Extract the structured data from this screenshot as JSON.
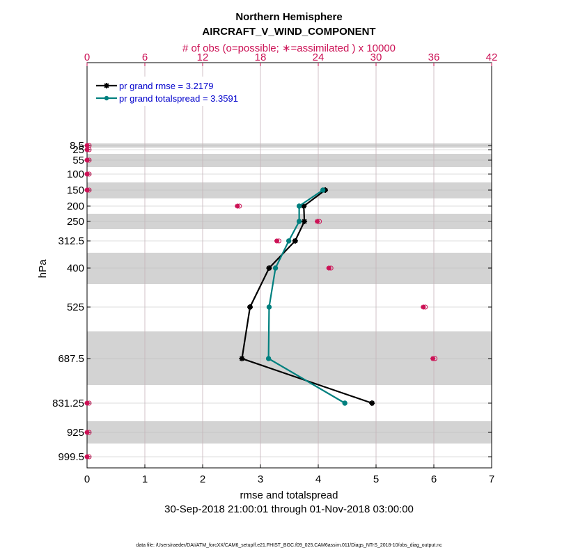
{
  "chart_data": {
    "type": "line",
    "title": "Northern Hemisphere",
    "subtitle": "AIRCRAFT_V_WIND_COMPONENT",
    "top_axis_label": "# of obs (o=possible; ∗=assimilated ) x 10000",
    "xlabel": "rmse and totalspread",
    "ylabel": "hPa",
    "date_range": "30-Sep-2018 21:00:01 through 01-Nov-2018 03:00:00",
    "footnote": "data file: /Users/raeder/DAI/ATM_forcXX/CAM6_setup/f.e21.FHIST_BGC.f09_025.CAM6assim.011/Diags_NTrS_2018-10/obs_diag_output.nc",
    "xlim": [
      0,
      7
    ],
    "x_ticks": [
      0,
      1,
      2,
      3,
      4,
      5,
      6,
      7
    ],
    "top_xlim": [
      0,
      42
    ],
    "top_ticks": [
      0,
      6,
      12,
      18,
      24,
      30,
      36,
      42
    ],
    "levels": [
      "8.5",
      "25",
      "55",
      "100",
      "150",
      "200",
      "250",
      "312.5",
      "400",
      "525",
      "687.5",
      "831.25",
      "925",
      "999.5"
    ],
    "shaded_bands": [
      [
        "8.5",
        "25"
      ],
      [
        "55",
        "100"
      ],
      [
        "150",
        "200"
      ],
      [
        "250",
        "312.5"
      ],
      [
        "400",
        "525"
      ],
      [
        "687.5",
        "831.25"
      ],
      [
        "925",
        "999.5"
      ]
    ],
    "legend_position": "top-left",
    "series": [
      {
        "name": "pr grand rmse = 3.2179",
        "color": "#000000",
        "marker": "star",
        "points": [
          [
            "150",
            4.12
          ],
          [
            "200",
            3.75
          ],
          [
            "250",
            3.76
          ],
          [
            "312.5",
            3.6
          ],
          [
            "400",
            3.15
          ],
          [
            "525",
            2.82
          ],
          [
            "687.5",
            2.68
          ],
          [
            "831.25",
            4.93
          ]
        ]
      },
      {
        "name": "pr grand totalspread = 3.3591",
        "color": "#00807f",
        "marker": "circle",
        "points": [
          [
            "150",
            4.08
          ],
          [
            "200",
            3.67
          ],
          [
            "250",
            3.67
          ],
          [
            "312.5",
            3.49
          ],
          [
            "400",
            3.26
          ],
          [
            "525",
            3.15
          ],
          [
            "687.5",
            3.14
          ],
          [
            "831.25",
            4.46
          ]
        ]
      }
    ],
    "obs_counts": {
      "color": "#cc1155",
      "points": [
        [
          "8.5",
          0
        ],
        [
          "25",
          0
        ],
        [
          "55",
          0
        ],
        [
          "100",
          0
        ],
        [
          "150",
          0
        ],
        [
          "200",
          15.6
        ],
        [
          "250",
          23.9
        ],
        [
          "312.5",
          19.7
        ],
        [
          "400",
          25.1
        ],
        [
          "525",
          34.9
        ],
        [
          "687.5",
          35.9
        ],
        [
          "831.25",
          0
        ],
        [
          "925",
          0
        ],
        [
          "999.5",
          0
        ]
      ]
    }
  }
}
